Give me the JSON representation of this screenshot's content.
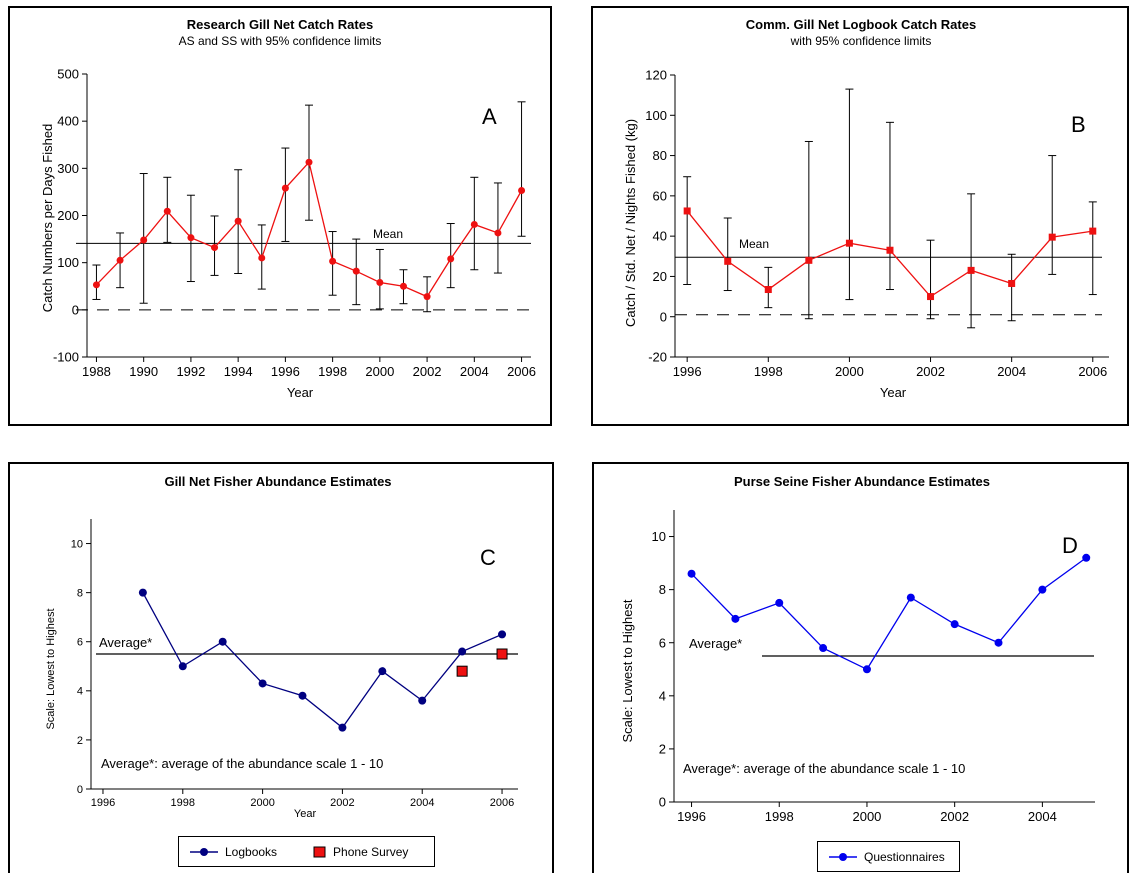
{
  "chart_data": [
    {
      "id": "A",
      "type": "line",
      "title": "Research Gill Net Catch Rates",
      "subtitle": "AS and SS with 95% confidence limits",
      "panel_letter": "A",
      "xlabel": "Year",
      "ylabel": "Catch Numbers per Days Fished",
      "xlim": [
        1987.6,
        2006.4
      ],
      "ylim": [
        -100,
        500
      ],
      "xticks": [
        1988,
        1990,
        1992,
        1994,
        1996,
        1998,
        2000,
        2002,
        2004,
        2006
      ],
      "yticks": [
        -100,
        0,
        100,
        200,
        300,
        400,
        500
      ],
      "series": [
        {
          "color": "#ee1111",
          "marker": "circle",
          "x": [
            1988,
            1989,
            1990,
            1991,
            1992,
            1993,
            1994,
            1995,
            1996,
            1997,
            1998,
            1999,
            2000,
            2001,
            2002,
            2003,
            2004,
            2005,
            2006
          ],
          "y": [
            53,
            105,
            148,
            209,
            153,
            132,
            188,
            110,
            258,
            313,
            103,
            82,
            58,
            50,
            28,
            108,
            181,
            163,
            253
          ],
          "lower": [
            22,
            47,
            14,
            143,
            60,
            73,
            77,
            44,
            145,
            190,
            31,
            11,
            2,
            13,
            -4,
            47,
            85,
            78,
            156
          ],
          "upper": [
            95,
            163,
            289,
            281,
            243,
            199,
            297,
            180,
            343,
            434,
            166,
            150,
            128,
            85,
            70,
            183,
            281,
            269,
            441
          ]
        }
      ],
      "mean": {
        "value": 141,
        "label": "Mean",
        "color": "#000000"
      },
      "reference_dashed": 0
    },
    {
      "id": "B",
      "type": "line",
      "title": "Comm. Gill Net Logbook Catch Rates",
      "subtitle": "with 95% confidence limits",
      "panel_letter": "B",
      "xlabel": "Year",
      "ylabel": "Catch / Std. Net / Nights Fished (kg)",
      "xlim": [
        1995.7,
        2006.4
      ],
      "ylim": [
        -20,
        120
      ],
      "xticks": [
        1996,
        1998,
        2000,
        2002,
        2004,
        2006
      ],
      "yticks": [
        -20,
        0,
        20,
        40,
        60,
        80,
        100,
        120
      ],
      "series": [
        {
          "color": "#ee1111",
          "marker": "square",
          "x": [
            1996,
            1997,
            1998,
            1999,
            2000,
            2001,
            2002,
            2003,
            2004,
            2005,
            2006
          ],
          "y": [
            52.5,
            27.5,
            13.5,
            28,
            36.5,
            33,
            10,
            23,
            16.5,
            39.5,
            42.5
          ],
          "lower": [
            16,
            13,
            4.5,
            -1,
            8.5,
            13.5,
            -1,
            -5.5,
            -2,
            21,
            11
          ],
          "upper": [
            69.5,
            49,
            24.5,
            87,
            113,
            96.5,
            38,
            61,
            31,
            80,
            57
          ]
        }
      ],
      "mean": {
        "value": 29.5,
        "label": "Mean",
        "color": "#000000"
      },
      "reference_dashed": 1
    },
    {
      "id": "C",
      "type": "line",
      "title": "Gill Net Fisher Abundance Estimates",
      "panel_letter": "C",
      "xlabel": "Year",
      "ylabel": "Scale: Lowest to Highest",
      "xlim": [
        1995.7,
        2006.4
      ],
      "ylim": [
        0,
        11
      ],
      "xticks": [
        1996,
        1998,
        2000,
        2002,
        2004,
        2006
      ],
      "yticks": [
        0,
        2,
        4,
        6,
        8,
        10
      ],
      "series": [
        {
          "name": "Logbooks",
          "color": "#000080",
          "marker": "circle",
          "x": [
            1997,
            1998,
            1999,
            2000,
            2001,
            2002,
            2003,
            2004,
            2005,
            2006
          ],
          "y": [
            8.0,
            5.0,
            6.0,
            4.3,
            3.8,
            2.5,
            4.8,
            3.6,
            5.6,
            6.3
          ]
        },
        {
          "name": "Phone Survey",
          "color": "#ee1111",
          "marker": "square",
          "line": false,
          "x": [
            2005,
            2006
          ],
          "y": [
            4.8,
            5.5
          ]
        }
      ],
      "average": {
        "value": 5.5,
        "label": "Average*"
      },
      "note": "Average*: average of the abundance scale 1 - 10",
      "legend_position": "bottom"
    },
    {
      "id": "D",
      "type": "line",
      "title": "Purse Seine Fisher Abundance Estimates",
      "panel_letter": "D",
      "xlabel": "",
      "ylabel": "Scale: Lowest to Highest",
      "xlim": [
        1995.6,
        2005.2
      ],
      "ylim": [
        0,
        11
      ],
      "xticks": [
        1996,
        1998,
        2000,
        2002,
        2004
      ],
      "yticks": [
        0,
        2,
        4,
        6,
        8,
        10
      ],
      "series": [
        {
          "name": "Questionnaires",
          "color": "#0000ee",
          "marker": "circle",
          "x": [
            1996,
            1997,
            1998,
            1999,
            2000,
            2001,
            2002,
            2003,
            2004,
            2005
          ],
          "y": [
            8.6,
            6.9,
            7.5,
            5.8,
            5.0,
            7.7,
            6.7,
            6.0,
            8.0,
            9.2
          ]
        }
      ],
      "average": {
        "value": 5.5,
        "label": "Average*"
      },
      "note": "Average*: average of the abundance scale 1 - 10",
      "legend_position": "bottom"
    }
  ]
}
